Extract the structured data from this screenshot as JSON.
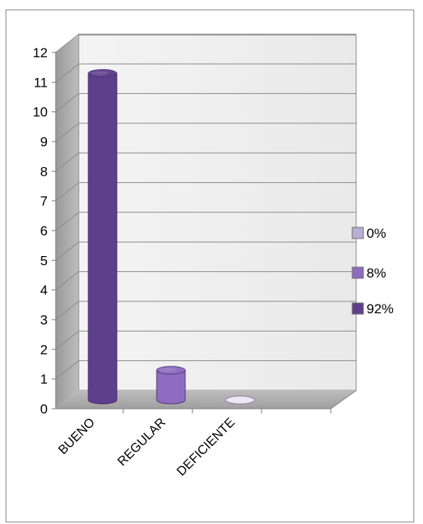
{
  "chart_data": {
    "type": "bar",
    "categories": [
      "BUENO",
      "REGULAR",
      "DEFICIENTE"
    ],
    "values": [
      11,
      1,
      0
    ],
    "ylim": [
      0,
      12
    ],
    "yticks": [
      "0",
      "1",
      "2",
      "3",
      "4",
      "5",
      "6",
      "7",
      "8",
      "9",
      "10",
      "11",
      "12"
    ],
    "grid": true,
    "legend_position": "right",
    "legend": [
      {
        "label": "0%",
        "color": "#b9aed6"
      },
      {
        "label": "8%",
        "color": "#8e6cc0"
      },
      {
        "label": "92%",
        "color": "#5e3f8c"
      }
    ],
    "bar_colors": [
      "#5e3f8c",
      "#8e6cc0",
      "#b9aed6"
    ]
  }
}
